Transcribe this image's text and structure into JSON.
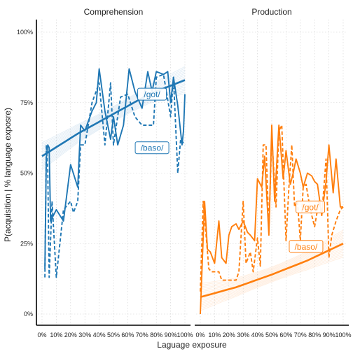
{
  "chart_data": {
    "type": "line",
    "panels": [
      "Comprehension",
      "Production"
    ],
    "xlabel": "Laguage exposure",
    "ylabel": "P(acquisition | % language exposre)",
    "x_ticks": [
      "0%",
      "10%",
      "20%",
      "30%",
      "40%",
      "50%",
      "60%",
      "70%",
      "80%",
      "90%",
      "100%"
    ],
    "y_ticks": [
      "0%",
      "25%",
      "50%",
      "75%",
      "100%"
    ],
    "ylim": [
      0,
      1
    ],
    "xlim": [
      0,
      100
    ],
    "grid": true,
    "colors": {
      "Comprehension": "#1f77b4",
      "Production": "#ff7f0e"
    },
    "series": [
      {
        "panel": "Comprehension",
        "name": "/got/",
        "style": "solid",
        "x": [
          2,
          3,
          4,
          5,
          6,
          10,
          15,
          20,
          25,
          27,
          30,
          35,
          38,
          40,
          44,
          48,
          50,
          53,
          57,
          61,
          65,
          70,
          74,
          77,
          80,
          85,
          88,
          90,
          92,
          95,
          98,
          99,
          100
        ],
        "y": [
          0.16,
          0.55,
          0.6,
          0.59,
          0.33,
          0.37,
          0.33,
          0.53,
          0.45,
          0.67,
          0.65,
          0.72,
          0.75,
          0.87,
          0.72,
          0.62,
          0.7,
          0.6,
          0.67,
          0.87,
          0.79,
          0.73,
          0.86,
          0.79,
          0.86,
          0.85,
          0.86,
          0.75,
          0.84,
          0.74,
          0.6,
          0.65,
          0.78
        ]
      },
      {
        "panel": "Comprehension",
        "name": "/baso/",
        "style": "dashed",
        "x": [
          2,
          3,
          4,
          5,
          7,
          10,
          15,
          20,
          22,
          25,
          27,
          30,
          35,
          40,
          44,
          48,
          50,
          55,
          60,
          65,
          70,
          72,
          78,
          80,
          85,
          90,
          92,
          95,
          97,
          100
        ],
        "y": [
          0.13,
          0.6,
          0.51,
          0.13,
          0.4,
          0.13,
          0.37,
          0.4,
          0.36,
          0.4,
          0.6,
          0.6,
          0.75,
          0.82,
          0.6,
          0.82,
          0.6,
          0.77,
          0.78,
          0.7,
          0.67,
          0.67,
          0.67,
          0.84,
          0.85,
          0.7,
          0.84,
          0.5,
          0.62,
          0.6
        ]
      },
      {
        "panel": "Production",
        "name": "/got/",
        "style": "solid",
        "x": [
          0,
          3,
          5,
          7,
          10,
          13,
          15,
          18,
          20,
          22,
          25,
          27,
          30,
          33,
          35,
          38,
          40,
          43,
          45,
          48,
          50,
          52,
          55,
          58,
          60,
          63,
          65,
          67,
          70,
          72,
          75,
          78,
          80,
          82,
          85,
          88,
          90,
          93,
          95,
          98,
          100
        ],
        "y": [
          0.0,
          0.4,
          0.23,
          0.22,
          0.18,
          0.33,
          0.2,
          0.18,
          0.28,
          0.31,
          0.32,
          0.3,
          0.33,
          0.29,
          0.28,
          0.26,
          0.48,
          0.45,
          0.56,
          0.28,
          0.67,
          0.4,
          0.67,
          0.48,
          0.58,
          0.46,
          0.5,
          0.55,
          0.5,
          0.45,
          0.5,
          0.49,
          0.47,
          0.46,
          0.35,
          0.47,
          0.6,
          0.43,
          0.55,
          0.38,
          0.38
        ]
      },
      {
        "panel": "Production",
        "name": "/baso/",
        "style": "dashed",
        "x": [
          0,
          2,
          4,
          6,
          8,
          10,
          13,
          15,
          18,
          20,
          22,
          25,
          27,
          30,
          32,
          35,
          37,
          40,
          42,
          44,
          46,
          48,
          50,
          53,
          55,
          57,
          60,
          62,
          64,
          66,
          68,
          70,
          72,
          74,
          76,
          78,
          80,
          83,
          85,
          88,
          90,
          92,
          95,
          98,
          100
        ],
        "y": [
          0.08,
          0.4,
          0.28,
          0.16,
          0.15,
          0.15,
          0.15,
          0.12,
          0.12,
          0.12,
          0.12,
          0.12,
          0.15,
          0.4,
          0.18,
          0.22,
          0.15,
          0.27,
          0.17,
          0.6,
          0.6,
          0.3,
          0.63,
          0.38,
          0.65,
          0.67,
          0.26,
          0.45,
          0.6,
          0.38,
          0.4,
          0.26,
          0.45,
          0.46,
          0.4,
          0.35,
          0.31,
          0.4,
          0.35,
          0.55,
          0.2,
          0.28,
          0.33,
          0.37,
          0.38
        ]
      }
    ],
    "fits": [
      {
        "panel": "Comprehension",
        "x": [
          0,
          25,
          50,
          75,
          100
        ],
        "y": [
          0.56,
          0.64,
          0.71,
          0.78,
          0.83
        ]
      },
      {
        "panel": "Production",
        "x": [
          0,
          25,
          50,
          75,
          100
        ],
        "y": [
          0.06,
          0.095,
          0.14,
          0.19,
          0.25
        ]
      }
    ],
    "labels": [
      {
        "panel": "Comprehension",
        "text": "/got/",
        "x": 77,
        "y": 0.78
      },
      {
        "panel": "Comprehension",
        "text": "/baso/",
        "x": 77,
        "y": 0.59
      },
      {
        "panel": "Production",
        "text": "/got/",
        "x": 77,
        "y": 0.38
      },
      {
        "panel": "Production",
        "text": "/baso/",
        "x": 74,
        "y": 0.24
      }
    ]
  }
}
